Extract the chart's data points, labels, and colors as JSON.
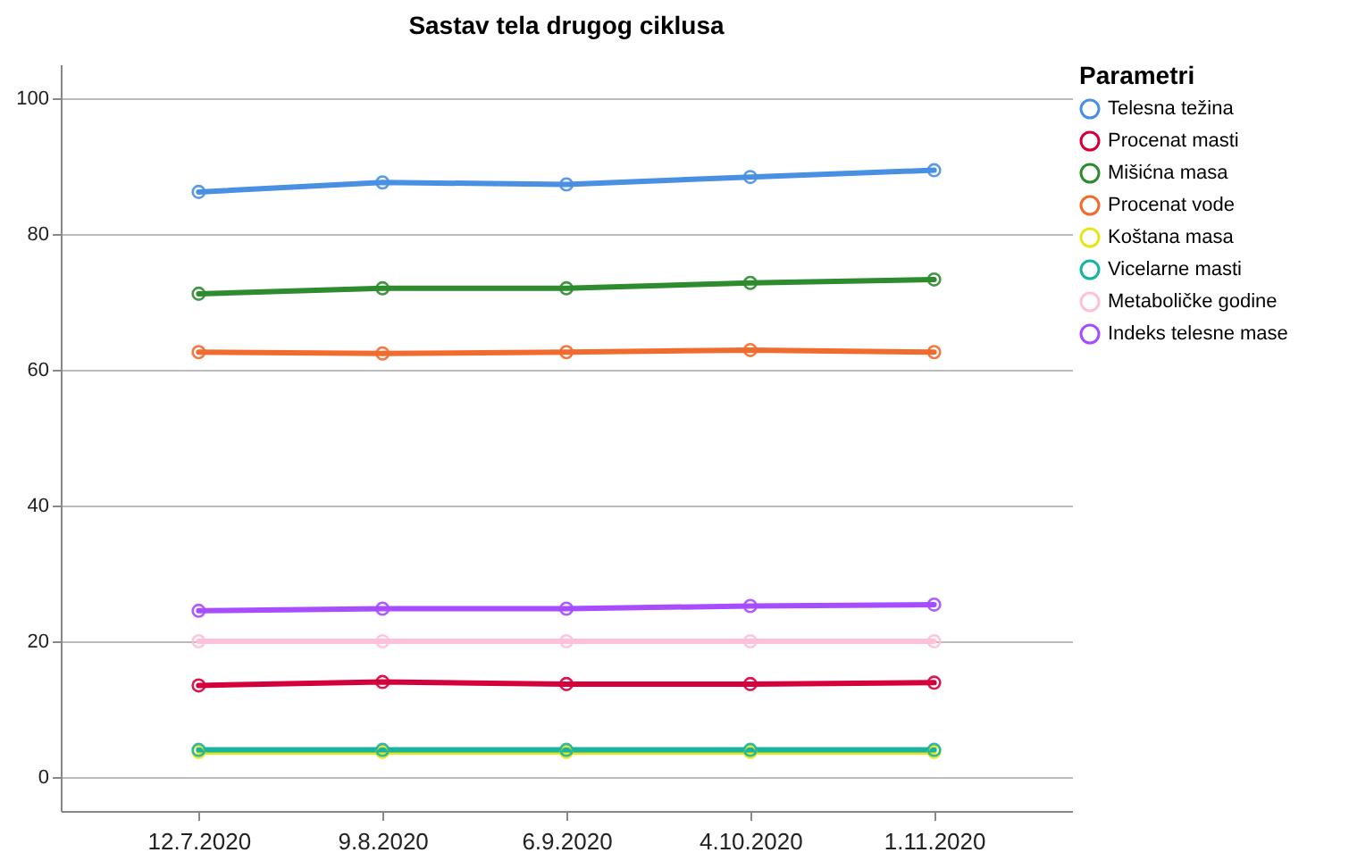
{
  "chart_data": {
    "type": "line",
    "title": "Sastav tela drugog ciklusa",
    "legend_title": "Parametri",
    "categories": [
      "12.7.2020",
      "9.8.2020",
      "6.9.2020",
      "4.10.2020",
      "1.11.2020"
    ],
    "series": [
      {
        "name": "Telesna težina",
        "color": "#4a90e2",
        "values": [
          86.2,
          87.6,
          87.3,
          88.4,
          89.4
        ]
      },
      {
        "name": "Procenat masti",
        "color": "#d4003c",
        "values": [
          13.5,
          14.0,
          13.7,
          13.7,
          13.9
        ]
      },
      {
        "name": "Mišićna masa",
        "color": "#2e8b2e",
        "values": [
          71.2,
          72.0,
          72.0,
          72.8,
          73.3
        ]
      },
      {
        "name": "Procenat vode",
        "color": "#f26b2e",
        "values": [
          62.6,
          62.4,
          62.6,
          62.9,
          62.6
        ]
      },
      {
        "name": "Koštana masa",
        "color": "#e6e61a",
        "values": [
          3.7,
          3.7,
          3.7,
          3.7,
          3.7
        ]
      },
      {
        "name": "Vicelarne masti",
        "color": "#1ab2a0",
        "values": [
          4.0,
          4.0,
          4.0,
          4.0,
          4.0
        ]
      },
      {
        "name": "Metaboličke godine",
        "color": "#ffc0d9",
        "values": [
          20,
          20,
          20,
          20,
          20
        ]
      },
      {
        "name": "Indeks telesne mase",
        "color": "#a64dff",
        "values": [
          24.5,
          24.8,
          24.8,
          25.2,
          25.4
        ]
      }
    ],
    "ylim": [
      -5,
      105
    ],
    "yticks": [
      0,
      20,
      40,
      60,
      80,
      100
    ],
    "grid": "y",
    "legend": "top right",
    "marker": "circle",
    "line_style": "solid"
  }
}
